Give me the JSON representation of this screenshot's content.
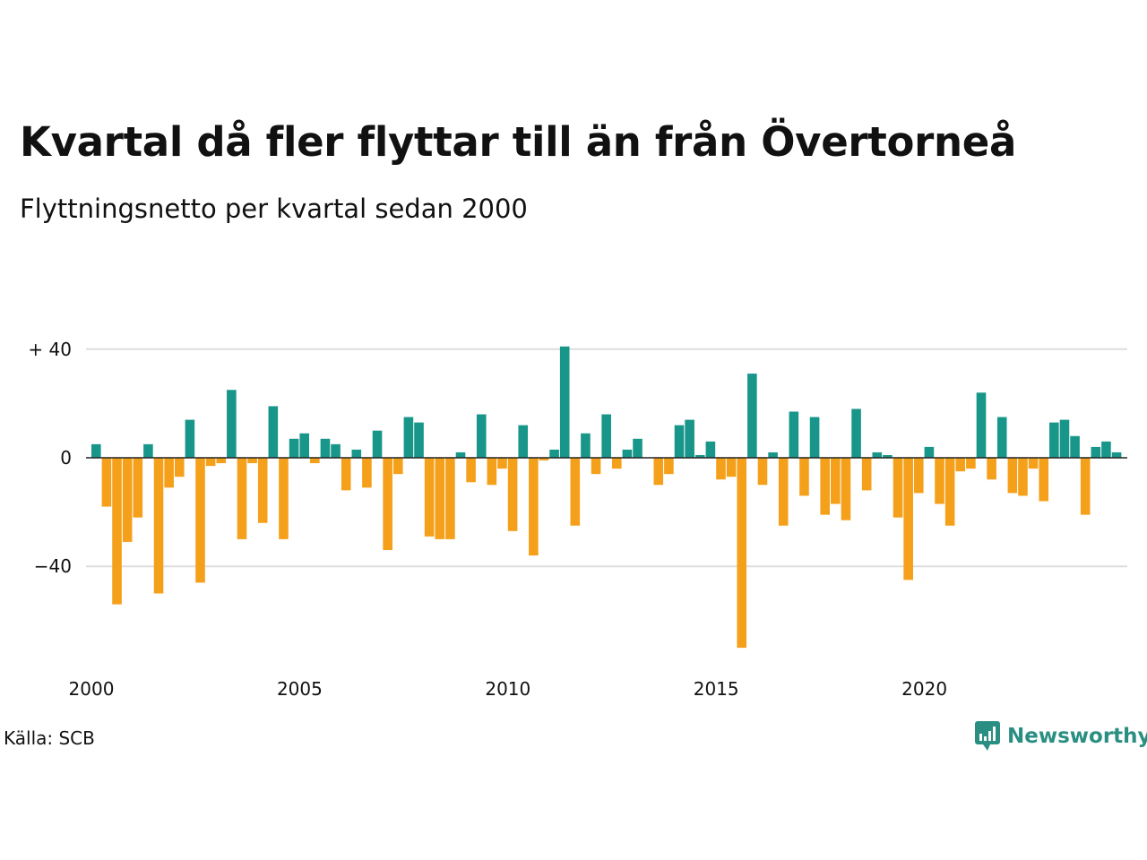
{
  "header": {
    "title": "Kvartal då fler flyttar till än från Övertorneå",
    "subtitle": "Flyttningsnetto per kvartal sedan 2000"
  },
  "footer": {
    "source": "Källa: SCB",
    "brand": "Newsworthy",
    "brand_icon": "newsworthy-logo-icon"
  },
  "colors": {
    "positive": "#18968a",
    "negative": "#f5a01a",
    "grid": "#dddddd",
    "zero_line": "#222222"
  },
  "chart_data": {
    "type": "bar",
    "title": "Kvartal då fler flyttar till än från Övertorneå",
    "subtitle": "Flyttningsnetto per kvartal sedan 2000",
    "start_year": 2000,
    "periods_per_year": 4,
    "x_tick_labels": [
      "2000",
      "2005",
      "2010",
      "2015",
      "2020"
    ],
    "y_tick_values": [
      40,
      0,
      -40
    ],
    "y_tick_labels": [
      "+ 40",
      "0",
      "−40"
    ],
    "ylim": [
      -78,
      43
    ],
    "grid": true,
    "values": [
      5,
      -18,
      -54,
      -31,
      -22,
      5,
      -50,
      -11,
      -7,
      14,
      -46,
      -3,
      -2,
      25,
      -30,
      -2,
      -24,
      19,
      -30,
      7,
      9,
      -2,
      7,
      5,
      -12,
      3,
      -11,
      10,
      -34,
      -6,
      15,
      13,
      -29,
      -30,
      -30,
      2,
      -9,
      16,
      -10,
      -4,
      -27,
      12,
      -36,
      -1,
      3,
      41,
      -25,
      9,
      -6,
      16,
      -4,
      3,
      7,
      0,
      -10,
      -6,
      12,
      14,
      1,
      6,
      -8,
      -7,
      -70,
      31,
      -10,
      2,
      -25,
      17,
      -14,
      15,
      -21,
      -17,
      -23,
      18,
      -12,
      2,
      1,
      -22,
      -45,
      -13,
      4,
      -17,
      -25,
      -5,
      -4,
      24,
      -8,
      15,
      -13,
      -14,
      -4,
      -16,
      13,
      14,
      8,
      -21,
      4,
      6,
      2
    ]
  }
}
